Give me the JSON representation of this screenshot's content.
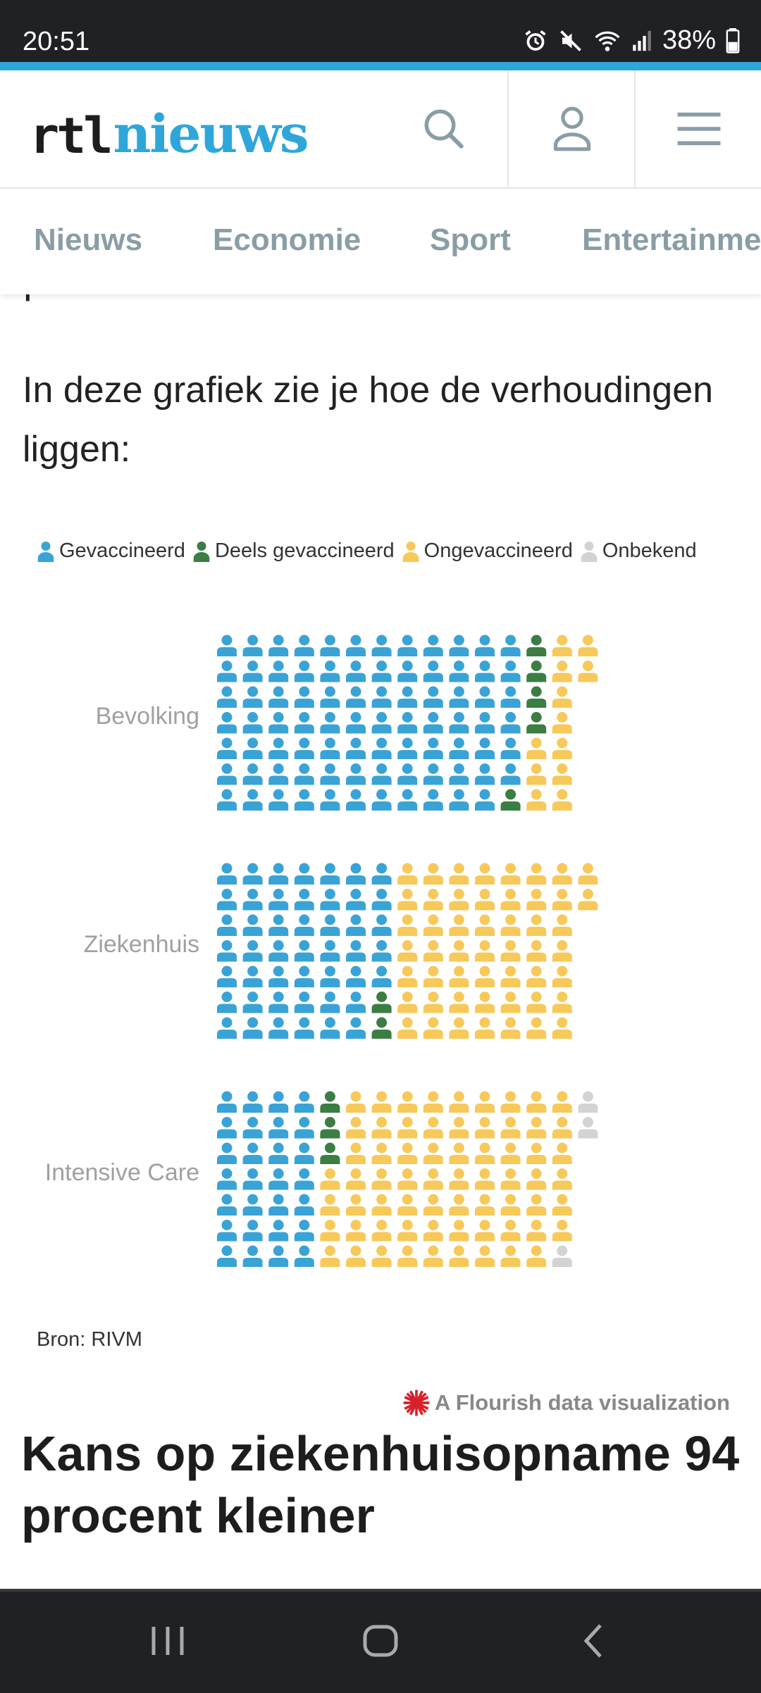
{
  "status_bar": {
    "time": "20:51",
    "battery": "38%",
    "icons": [
      "alarm-icon",
      "mute-icon",
      "wifi-icon",
      "signal-icon",
      "battery-icon"
    ]
  },
  "header": {
    "logo_rtl": "rtl",
    "logo_nieuws": "nieuws",
    "accent_color": "#2fa6da"
  },
  "categories": [
    "Nieuws",
    "Economie",
    "Sport",
    "Entertainme"
  ],
  "article": {
    "cutoff_text": "procent.",
    "intro": "In deze grafiek zie je hoe de verhoudingen liggen:",
    "source": "Bron: RIVM",
    "flourish": "A Flourish data visualization",
    "headline": "Kans op ziekenhuisopname 94 procent kleiner"
  },
  "chart_data": {
    "type": "waffle",
    "units_per_row": 100,
    "legend": [
      {
        "name": "Gevaccineerd",
        "color": "#3aa3d6"
      },
      {
        "name": "Deels gevaccineerd",
        "color": "#3b7d43"
      },
      {
        "name": "Ongevaccineerd",
        "color": "#f7c95a"
      },
      {
        "name": "Onbekend",
        "color": "#d3d3d3"
      }
    ],
    "rows": [
      {
        "label": "Bevolking",
        "values": [
          83,
          5,
          12,
          0
        ]
      },
      {
        "label": "Ziekenhuis",
        "values": [
          47,
          2,
          51,
          0
        ]
      },
      {
        "label": "Intensive Care",
        "values": [
          28,
          3,
          66,
          3
        ]
      }
    ]
  }
}
